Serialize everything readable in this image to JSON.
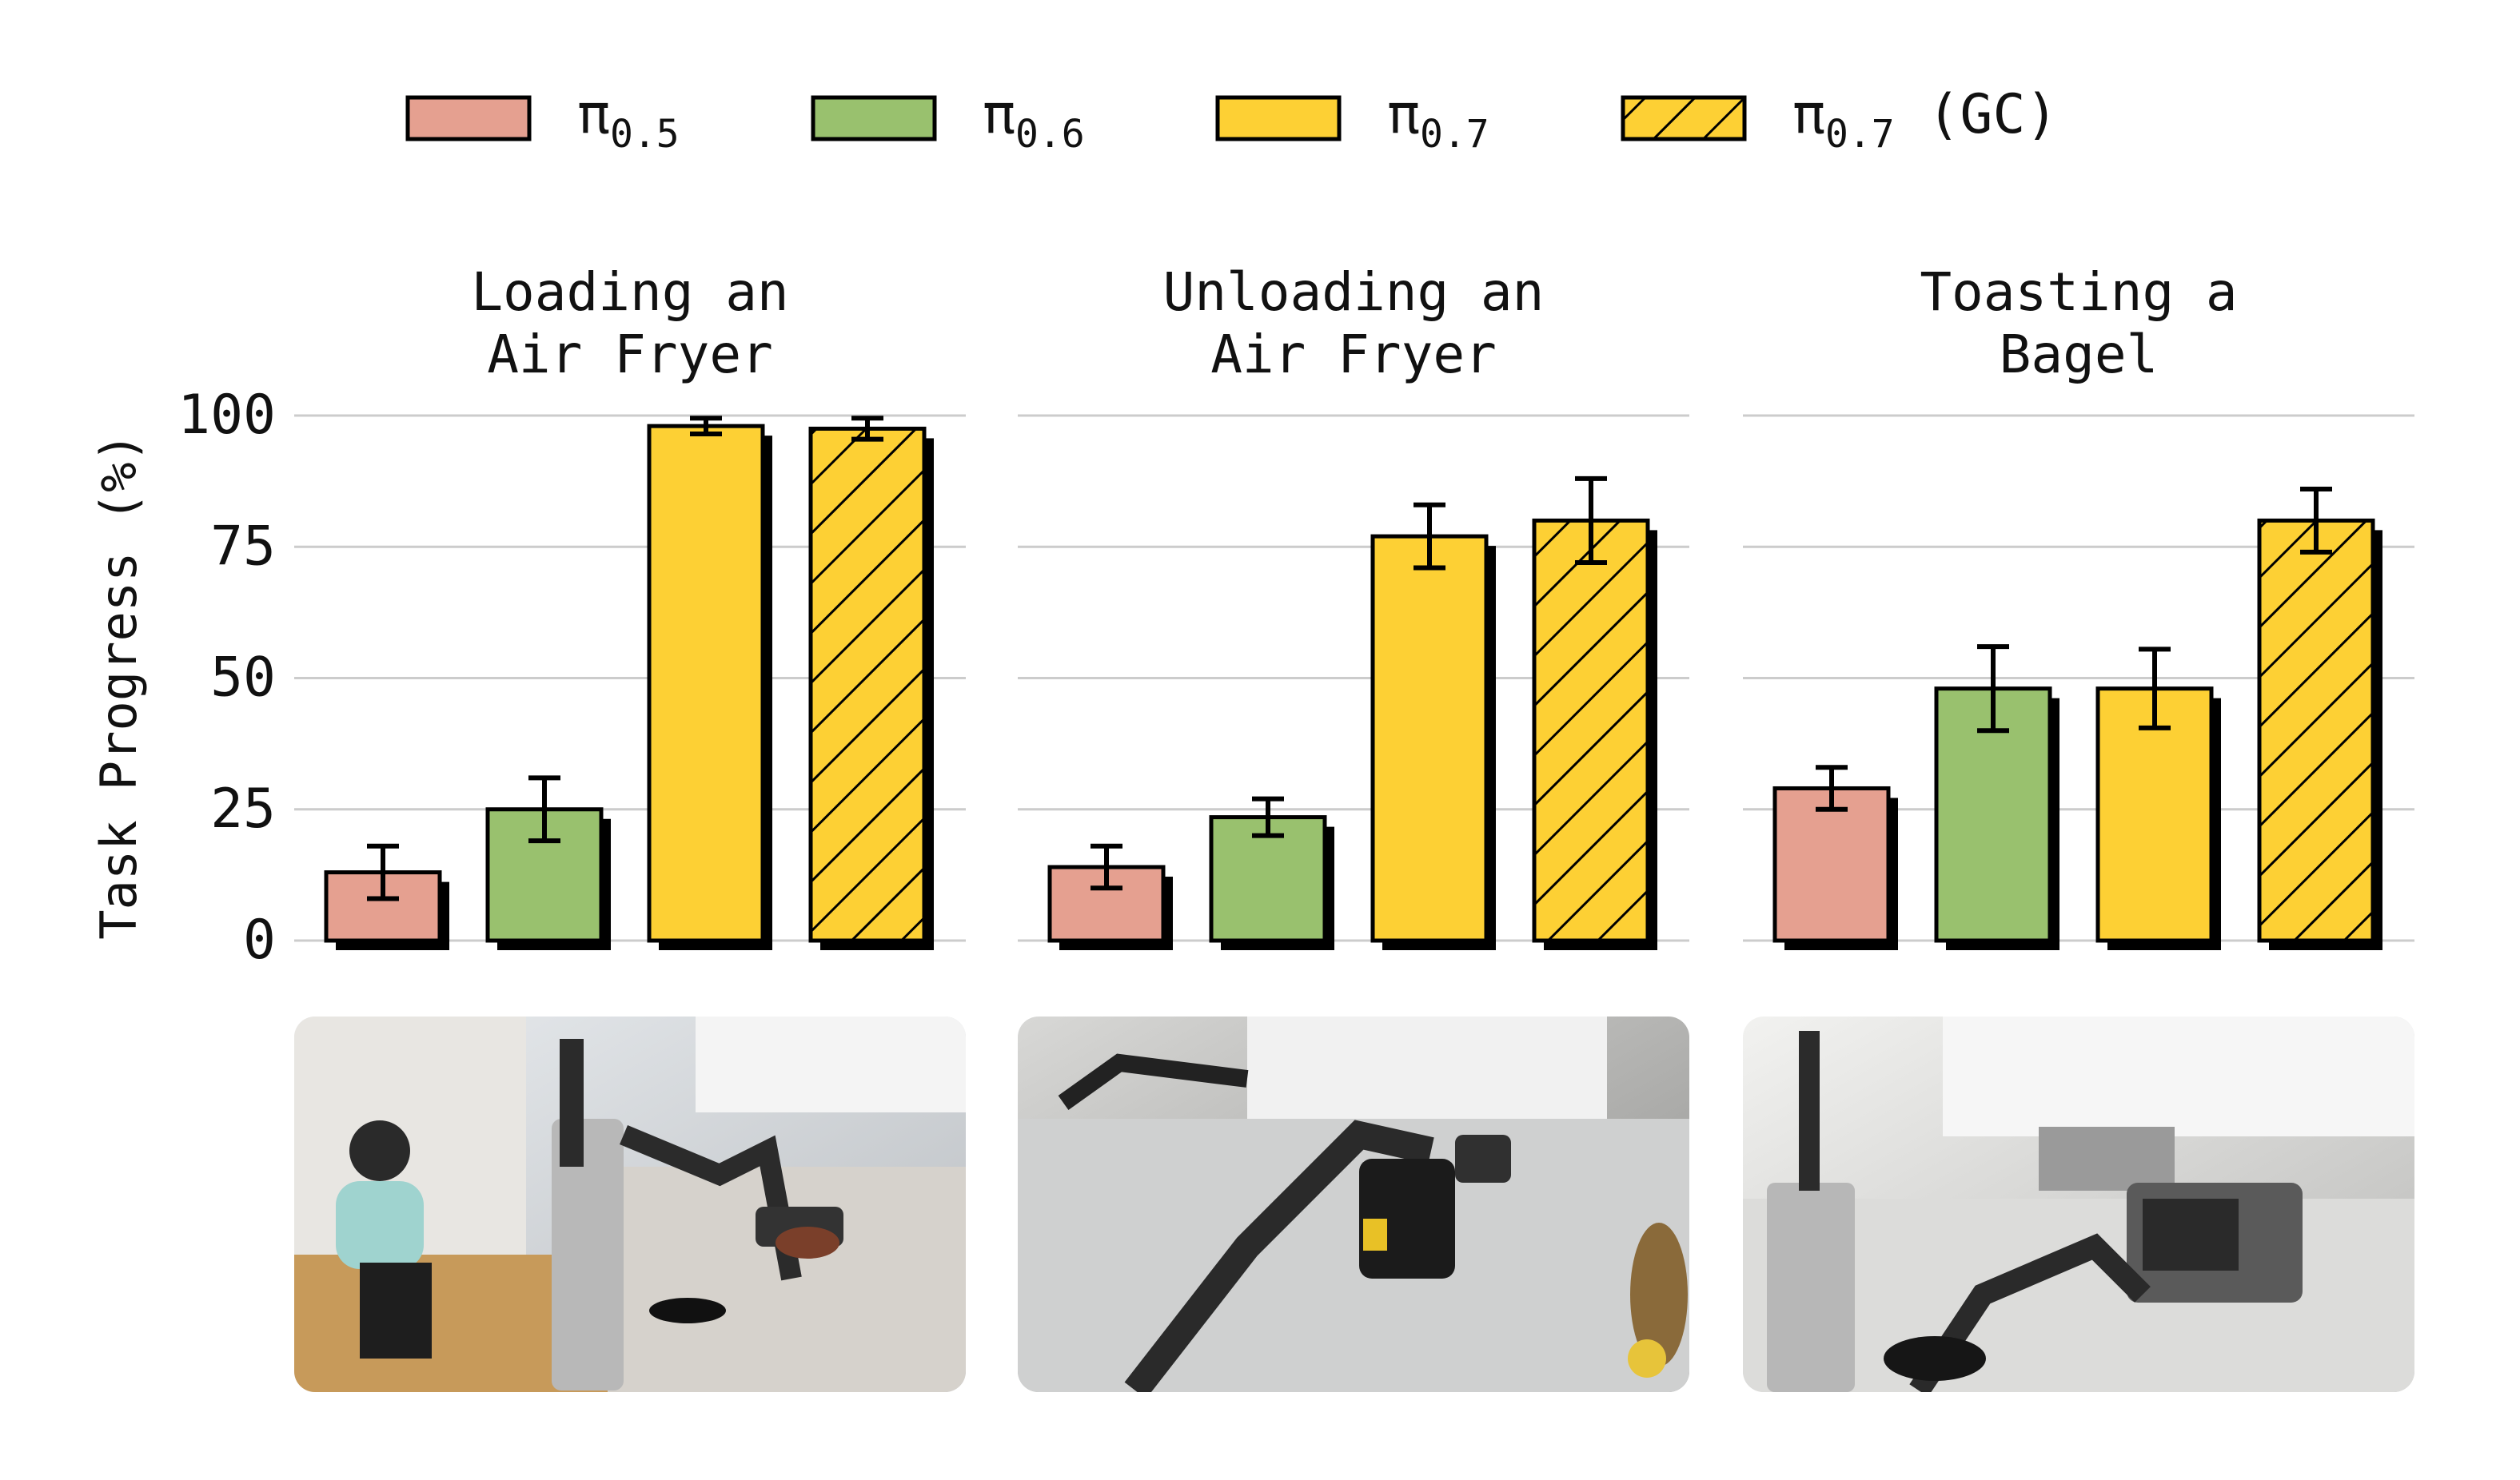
{
  "legend": [
    {
      "label": "π",
      "sub": "0.5",
      "suffix": ""
    },
    {
      "label": "π",
      "sub": "0.6",
      "suffix": ""
    },
    {
      "label": "π",
      "sub": "0.7",
      "suffix": ""
    },
    {
      "label": "π",
      "sub": "0.7",
      "suffix": " (GC)"
    }
  ],
  "colors": {
    "pi05": "#e5a090",
    "pi06": "#99c16e",
    "pi07": "#fdd034",
    "pi07gc": "#fdd034",
    "grid": "#cccccc",
    "edge": "#000000"
  },
  "photos": [
    {
      "name": "air-fryer-loading-photo",
      "desc_icon": "robot-arm-kitchen-photo"
    },
    {
      "name": "air-fryer-unloading-photo",
      "desc_icon": "robot-arm-air-fryer-photo"
    },
    {
      "name": "bagel-toasting-photo",
      "desc_icon": "robot-arm-toaster-photo"
    }
  ],
  "chart_data": [
    {
      "type": "bar",
      "title": [
        "Loading an",
        "Air Fryer"
      ],
      "ylabel": "Task Progress (%)",
      "ylim": [
        0,
        100
      ],
      "yticks": [
        0,
        25,
        50,
        75,
        100
      ],
      "categories": [
        "π0.5",
        "π0.6",
        "π0.7",
        "π0.7 (GC)"
      ],
      "values": [
        13,
        25,
        98,
        97.5
      ],
      "errors": [
        5,
        6,
        1.5,
        2
      ]
    },
    {
      "type": "bar",
      "title": [
        "Unloading an",
        "Air Fryer"
      ],
      "ylabel": "Task Progress (%)",
      "ylim": [
        0,
        100
      ],
      "yticks": [
        0,
        25,
        50,
        75,
        100
      ],
      "categories": [
        "π0.5",
        "π0.6",
        "π0.7",
        "π0.7 (GC)"
      ],
      "values": [
        14,
        23.5,
        77,
        80
      ],
      "errors": [
        4,
        3.5,
        6,
        8
      ]
    },
    {
      "type": "bar",
      "title": [
        "Toasting a",
        "Bagel"
      ],
      "ylabel": "Task Progress (%)",
      "ylim": [
        0,
        100
      ],
      "yticks": [
        0,
        25,
        50,
        75,
        100
      ],
      "categories": [
        "π0.5",
        "π0.6",
        "π0.7",
        "π0.7 (GC)"
      ],
      "values": [
        29,
        48,
        48,
        80
      ],
      "errors": [
        4,
        8,
        7.5,
        6
      ]
    }
  ]
}
